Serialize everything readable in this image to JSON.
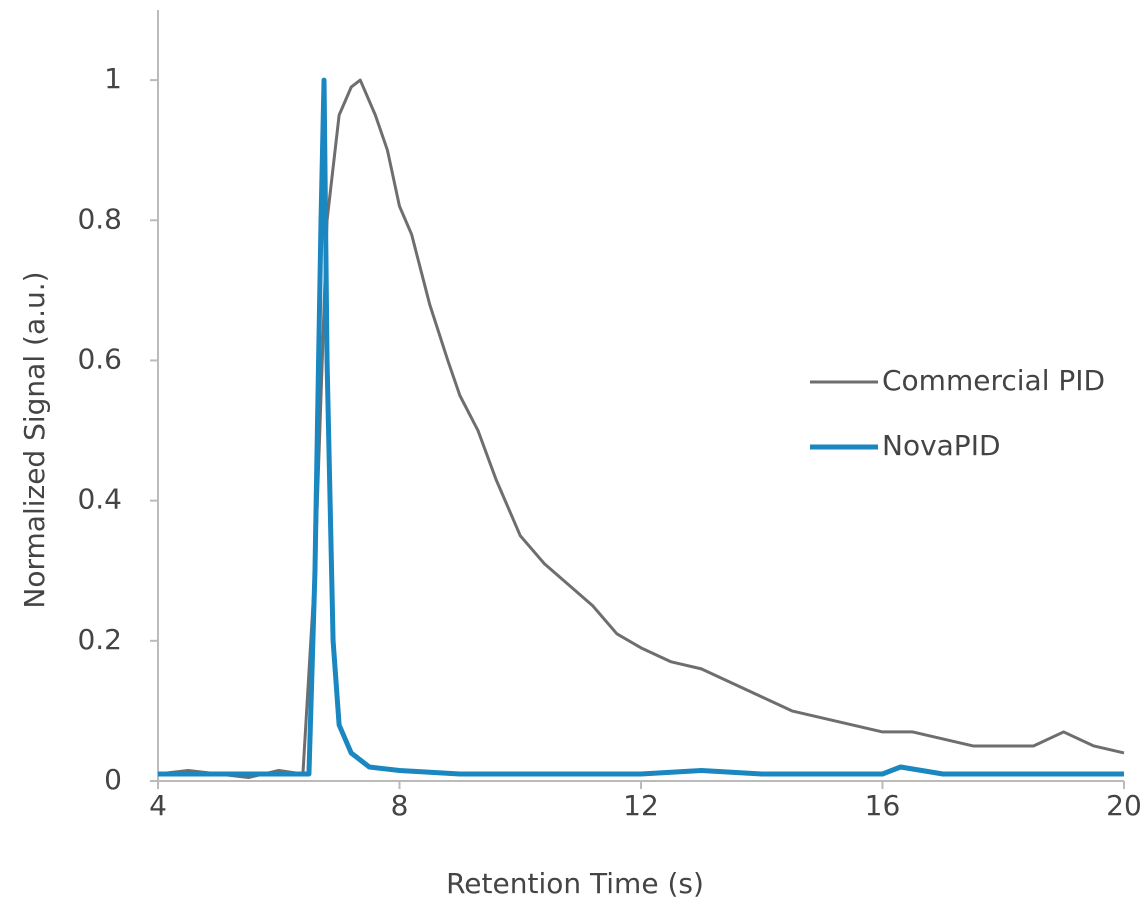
{
  "chart_data": {
    "type": "line",
    "xlabel": "Retention Time (s)",
    "ylabel": "Normalized Signal (a.u.)",
    "xlim": [
      4,
      20
    ],
    "xticks": [
      4,
      8,
      12,
      16,
      20
    ],
    "ylim": [
      0,
      1.1
    ],
    "yticks": [
      0,
      0.2,
      0.4,
      0.6,
      0.8,
      1
    ],
    "grid": false,
    "legend": "right",
    "series": [
      {
        "name": "Commercial PID",
        "color": "#6e6e6e",
        "x": [
          4,
          4.5,
          5,
          5.5,
          6,
          6.4,
          6.6,
          6.8,
          7.0,
          7.2,
          7.35,
          7.6,
          7.8,
          8.0,
          8.2,
          8.5,
          8.8,
          9.0,
          9.3,
          9.6,
          10,
          10.4,
          10.8,
          11.2,
          11.6,
          12,
          12.5,
          13,
          13.5,
          14,
          14.5,
          15,
          15.5,
          16,
          16.5,
          17,
          17.5,
          18,
          18.5,
          19,
          19.5,
          20
        ],
        "values": [
          0.01,
          0.015,
          0.01,
          0.005,
          0.015,
          0.01,
          0.3,
          0.8,
          0.95,
          0.99,
          1.0,
          0.95,
          0.9,
          0.82,
          0.78,
          0.68,
          0.6,
          0.55,
          0.5,
          0.43,
          0.35,
          0.31,
          0.28,
          0.25,
          0.21,
          0.19,
          0.17,
          0.16,
          0.14,
          0.12,
          0.1,
          0.09,
          0.08,
          0.07,
          0.07,
          0.06,
          0.05,
          0.05,
          0.05,
          0.07,
          0.05,
          0.04
        ]
      },
      {
        "name": "NovaPID",
        "color": "#1a87c0",
        "x": [
          4,
          5,
          6,
          6.5,
          6.6,
          6.7,
          6.75,
          6.8,
          6.9,
          7.0,
          7.2,
          7.5,
          8,
          9,
          10,
          12,
          13,
          14,
          16,
          16.3,
          17,
          18,
          20
        ],
        "values": [
          0.01,
          0.01,
          0.01,
          0.01,
          0.3,
          0.8,
          1.0,
          0.6,
          0.2,
          0.08,
          0.04,
          0.02,
          0.015,
          0.01,
          0.01,
          0.01,
          0.015,
          0.01,
          0.01,
          0.02,
          0.01,
          0.01,
          0.01
        ]
      }
    ]
  }
}
